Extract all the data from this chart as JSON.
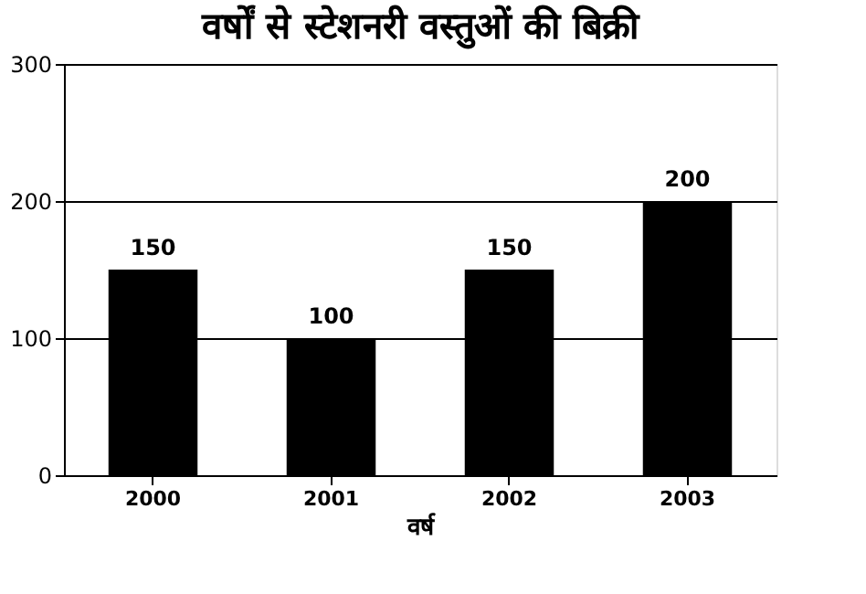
{
  "chart_data": {
    "type": "bar",
    "title": "वर्षों से स्टेशनरी वस्तुओं की बिक्री",
    "xlabel": "वर्ष",
    "categories": [
      "2000",
      "2001",
      "2002",
      "2003"
    ],
    "values": [
      150,
      100,
      150,
      200
    ],
    "color": "#000000",
    "ylim": [
      0,
      300
    ],
    "yticks": [
      0,
      100,
      200,
      300
    ],
    "grid": "y",
    "data_labels": true
  }
}
